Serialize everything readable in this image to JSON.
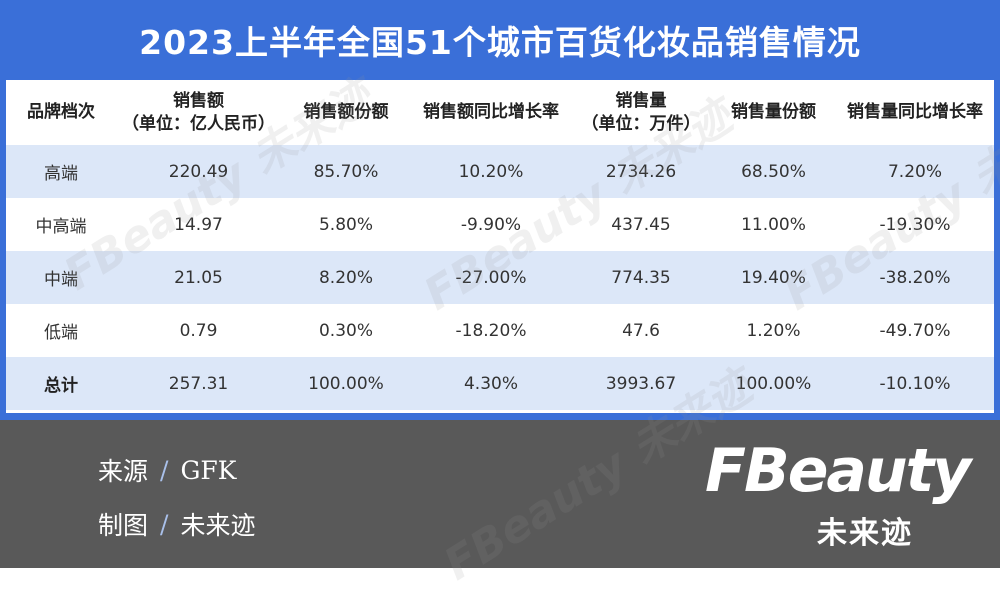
{
  "header": {
    "title": "2023上半年全国51个城市百货化妆品销售情况"
  },
  "colors": {
    "accent": "#3a6fd8",
    "row_highlight": "#dce7f8",
    "footer": "#595959",
    "slash": "#a9c0ea"
  },
  "chart_data": {
    "type": "table",
    "title": "2023上半年全国51个城市百货化妆品销售情况",
    "columns": [
      {
        "line1": "品牌档次",
        "line2": ""
      },
      {
        "line1": "销售额",
        "line2": "（单位：亿人民币）"
      },
      {
        "line1": "销售额份额",
        "line2": ""
      },
      {
        "line1": "销售额同比增长率",
        "line2": ""
      },
      {
        "line1": "销售量",
        "line2": "（单位：万件）"
      },
      {
        "line1": "销售量份额",
        "line2": ""
      },
      {
        "line1": "销售量同比增长率",
        "line2": ""
      }
    ],
    "rows": [
      [
        "高端",
        "220.49",
        "85.70%",
        "10.20%",
        "2734.26",
        "68.50%",
        "7.20%"
      ],
      [
        "中高端",
        "14.97",
        "5.80%",
        "-9.90%",
        "437.45",
        "11.00%",
        "-19.30%"
      ],
      [
        "中端",
        "21.05",
        "8.20%",
        "-27.00%",
        "774.35",
        "19.40%",
        "-38.20%"
      ],
      [
        "低端",
        "0.79",
        "0.30%",
        "-18.20%",
        "47.6",
        "1.20%",
        "-49.70%"
      ],
      [
        "总计",
        "257.31",
        "100.00%",
        "4.30%",
        "3993.67",
        "100.00%",
        "-10.10%"
      ]
    ]
  },
  "footer": {
    "source_label": "来源",
    "source_value": "GFK",
    "made_label": "制图",
    "made_value": "未来迹",
    "separator": "/"
  },
  "logo": {
    "word": "FBeauty",
    "sub": "未来迹"
  },
  "watermark": {
    "word": "FBeauty",
    "sub": "未来迹"
  }
}
